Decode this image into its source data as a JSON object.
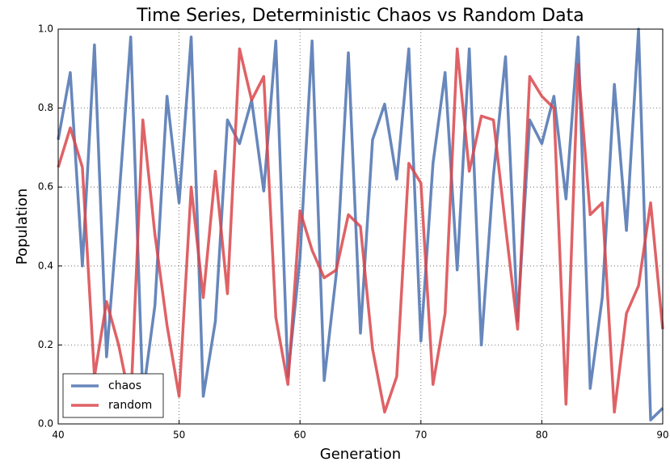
{
  "chart_data": {
    "type": "line",
    "title": "Time Series, Deterministic Chaos vs Random Data",
    "x_label": "Generation",
    "y_label": "Population",
    "x": [
      40,
      41,
      42,
      43,
      44,
      45,
      46,
      47,
      48,
      49,
      50,
      51,
      52,
      53,
      54,
      55,
      56,
      57,
      58,
      59,
      60,
      61,
      62,
      63,
      64,
      65,
      66,
      67,
      68,
      69,
      70,
      71,
      72,
      73,
      74,
      75,
      76,
      77,
      78,
      79,
      80,
      81,
      82,
      83,
      84,
      85,
      86,
      87,
      88,
      89,
      90
    ],
    "series": [
      {
        "name": "chaos",
        "color": "#4c72b0",
        "values": [
          0.72,
          0.89,
          0.4,
          0.96,
          0.17,
          0.56,
          0.98,
          0.07,
          0.3,
          0.83,
          0.56,
          0.98,
          0.07,
          0.26,
          0.77,
          0.71,
          0.82,
          0.59,
          0.97,
          0.12,
          0.42,
          0.97,
          0.11,
          0.38,
          0.94,
          0.23,
          0.72,
          0.81,
          0.62,
          0.95,
          0.21,
          0.66,
          0.89,
          0.39,
          0.95,
          0.2,
          0.63,
          0.93,
          0.26,
          0.77,
          0.71,
          0.83,
          0.57,
          0.98,
          0.09,
          0.32,
          0.86,
          0.49,
          1.0,
          0.01,
          0.04
        ]
      },
      {
        "name": "random",
        "color": "#d9464b",
        "values": [
          0.65,
          0.75,
          0.65,
          0.12,
          0.31,
          0.2,
          0.05,
          0.77,
          0.48,
          0.25,
          0.07,
          0.6,
          0.32,
          0.64,
          0.33,
          0.95,
          0.82,
          0.88,
          0.27,
          0.1,
          0.54,
          0.44,
          0.37,
          0.39,
          0.53,
          0.5,
          0.19,
          0.03,
          0.12,
          0.66,
          0.61,
          0.1,
          0.28,
          0.95,
          0.64,
          0.78,
          0.77,
          0.5,
          0.24,
          0.88,
          0.83,
          0.8,
          0.05,
          0.91,
          0.53,
          0.56,
          0.03,
          0.28,
          0.35,
          0.56,
          0.24
        ]
      }
    ],
    "xlim": [
      40,
      90
    ],
    "xticks": [
      40,
      50,
      60,
      70,
      80,
      90
    ],
    "ylim": [
      0,
      1
    ],
    "yticks": [
      {
        "value": 0,
        "label": "0.0"
      },
      {
        "value": 0.2,
        "label": "0.2"
      },
      {
        "value": 0.4,
        "label": "0.4"
      },
      {
        "value": 0.6,
        "label": "0.6"
      },
      {
        "value": 0.8,
        "label": "0.8"
      },
      {
        "value": 1,
        "label": "1.0"
      }
    ],
    "grid": true,
    "legend": "lower left"
  }
}
